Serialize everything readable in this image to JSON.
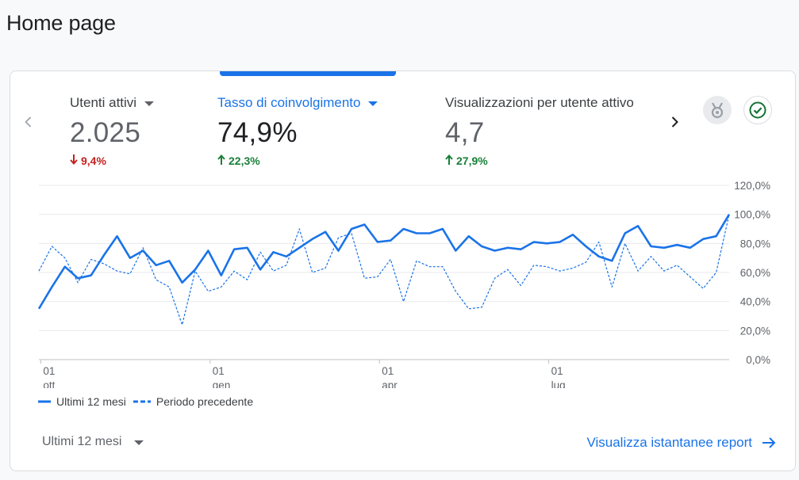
{
  "page": {
    "title": "Home page"
  },
  "colors": {
    "accent": "#1a73e8",
    "negative": "#c5221f",
    "positive": "#188038"
  },
  "metrics": [
    {
      "label": "Utenti attivi",
      "value": "2.025",
      "delta": "9,4%",
      "direction": "down",
      "selected": false
    },
    {
      "label": "Tasso di coinvolgimento",
      "value": "74,9%",
      "delta": "22,3%",
      "direction": "up",
      "selected": true
    },
    {
      "label": "Visualizzazioni per utente attivo",
      "value": "4,7",
      "delta": "27,9%",
      "direction": "up",
      "selected": false
    }
  ],
  "icons": {
    "prev": "chevron-left-icon",
    "next": "chevron-right-icon",
    "award": "award-icon",
    "check": "check-circle-icon",
    "report_arrow": "arrow-right-icon"
  },
  "chart_data": {
    "type": "line",
    "y_ticks": [
      "0,0%",
      "20,0%",
      "40,0%",
      "60,0%",
      "80,0%",
      "100,0%",
      "120,0%"
    ],
    "ylim": [
      0,
      120
    ],
    "y_axis_position": "right",
    "grid": true,
    "x_ticks": [
      {
        "index": 1,
        "day": "01",
        "month": "ott"
      },
      {
        "index": 14,
        "day": "01",
        "month": "gen"
      },
      {
        "index": 27,
        "day": "01",
        "month": "apr"
      },
      {
        "index": 40,
        "day": "01",
        "month": "lug"
      }
    ],
    "legend_position": "bottom-left",
    "series": [
      {
        "name": "Ultimi 12 mesi",
        "style": "solid",
        "values": [
          35,
          50,
          64,
          56,
          58,
          72,
          85,
          70,
          75,
          65,
          68,
          53,
          62,
          75,
          58,
          76,
          77,
          62,
          74,
          71,
          77,
          83,
          88,
          75,
          90,
          93,
          81,
          82,
          90,
          87,
          87,
          90,
          75,
          85,
          78,
          75,
          77,
          76,
          81,
          80,
          81,
          86,
          78,
          71,
          68,
          87,
          92,
          78,
          77,
          79,
          77,
          83,
          85,
          100
        ]
      },
      {
        "name": "Periodo precedente",
        "style": "dashed",
        "values": [
          61,
          78,
          70,
          53,
          69,
          66,
          61,
          59,
          77,
          55,
          50,
          24,
          61,
          47,
          50,
          61,
          55,
          74,
          61,
          65,
          90,
          60,
          63,
          84,
          87,
          56,
          57,
          69,
          40,
          68,
          64,
          64,
          47,
          35,
          36,
          56,
          62,
          51,
          65,
          64,
          61,
          63,
          67,
          81,
          50,
          80,
          61,
          71,
          61,
          65,
          57,
          49,
          60,
          100
        ]
      }
    ]
  },
  "footer": {
    "range_label": "Ultimi 12 mesi",
    "report_link": "Visualizza istantanee report"
  }
}
